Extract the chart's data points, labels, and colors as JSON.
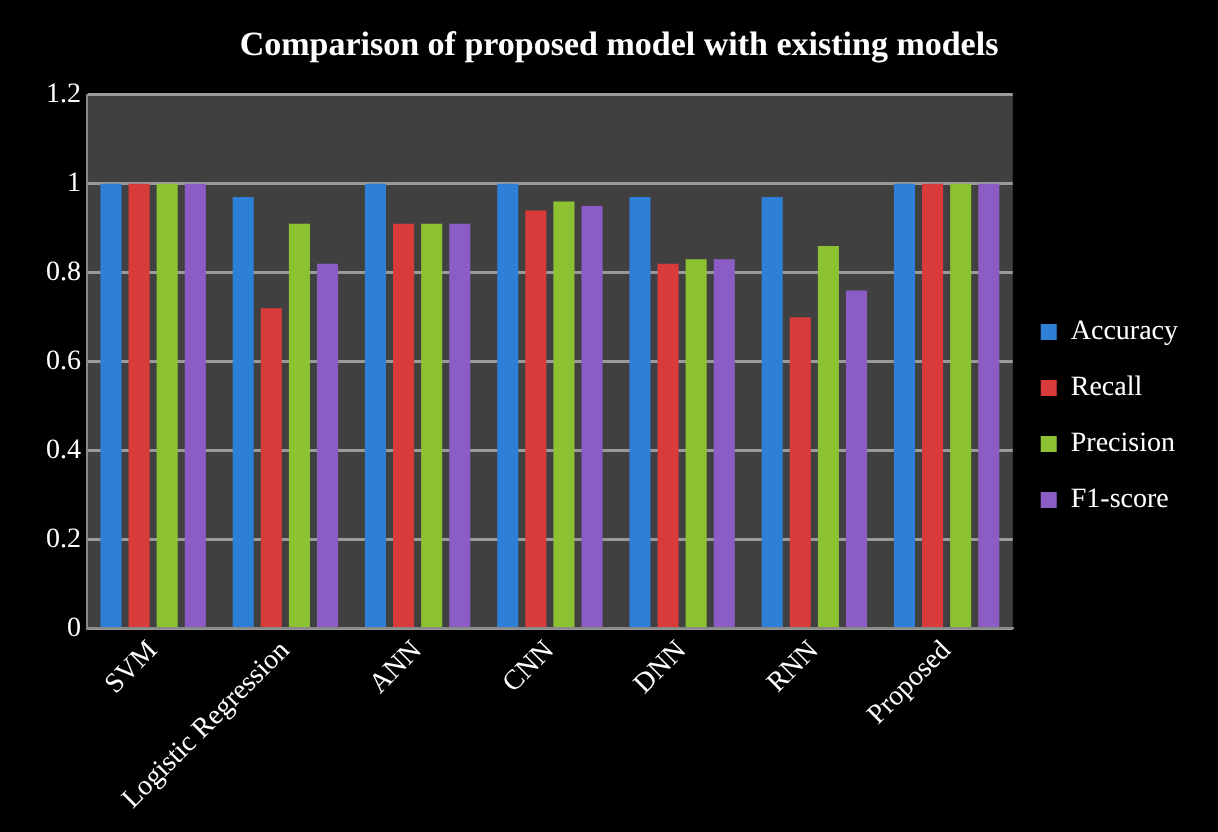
{
  "chart_data": {
    "type": "bar",
    "title": "Comparison of proposed model with existing models",
    "categories": [
      "SVM",
      "Logistic Regression",
      "ANN",
      "CNN",
      "DNN",
      "RNN",
      "Proposed"
    ],
    "series": [
      {
        "name": "Accuracy",
        "color": "#2e7fd6",
        "values": [
          1,
          0.97,
          1,
          1,
          0.97,
          0.97,
          1
        ]
      },
      {
        "name": "Recall",
        "color": "#d93a3a",
        "values": [
          1,
          0.72,
          0.91,
          0.94,
          0.82,
          0.7,
          1
        ]
      },
      {
        "name": "Precision",
        "color": "#8cc232",
        "values": [
          1,
          0.91,
          0.91,
          0.96,
          0.83,
          0.86,
          1
        ]
      },
      {
        "name": "F1-score",
        "color": "#8a5cc4",
        "values": [
          1,
          0.82,
          0.91,
          0.95,
          0.83,
          0.76,
          1
        ]
      }
    ],
    "ylim": [
      0,
      1.2
    ],
    "yticks": [
      0,
      0.2,
      0.4,
      0.6,
      0.8,
      1,
      1.2
    ],
    "grid": "y",
    "legend": "right"
  }
}
